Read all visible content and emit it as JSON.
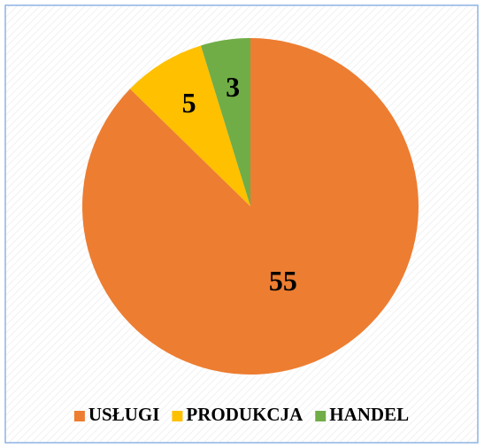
{
  "chart_data": {
    "type": "pie",
    "categories": [
      "USŁUGI",
      "PRODUKCJA",
      "HANDEL"
    ],
    "values": [
      55,
      5,
      3
    ],
    "colors": [
      "#ed7d31",
      "#ffc000",
      "#70ad47"
    ],
    "legend": "bottom"
  }
}
